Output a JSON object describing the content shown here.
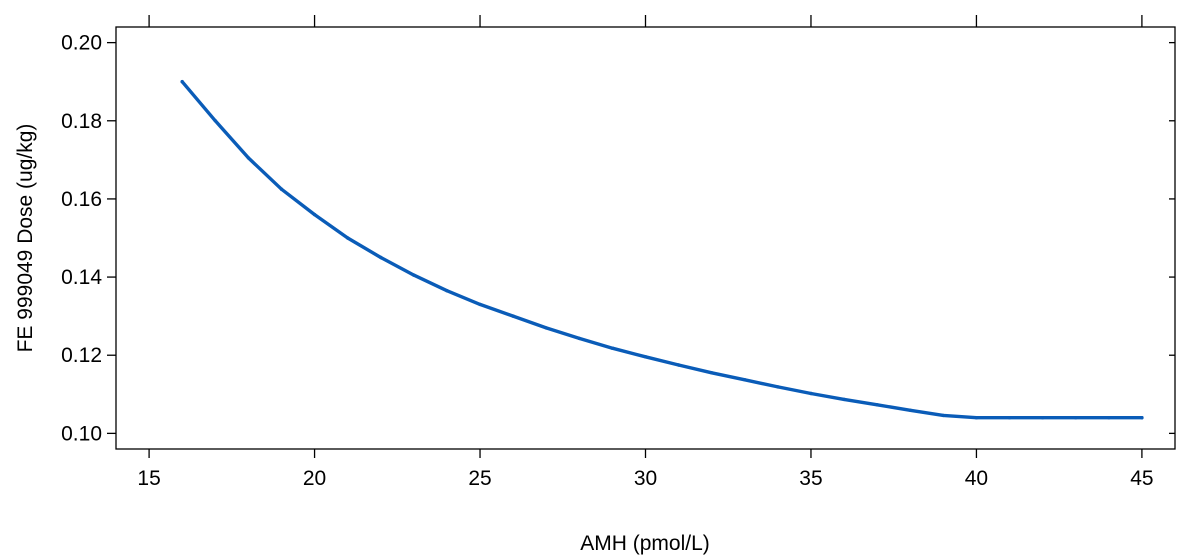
{
  "chart_data": {
    "type": "line",
    "xlabel": "AMH (pmol/L)",
    "ylabel": "FE 999049 Dose (ug/kg)",
    "xlim": [
      14,
      46
    ],
    "ylim": [
      0.096,
      0.204
    ],
    "x_ticks": [
      15,
      20,
      25,
      30,
      35,
      40,
      45
    ],
    "x_tick_labels": [
      "15",
      "20",
      "25",
      "30",
      "35",
      "40",
      "45"
    ],
    "y_ticks": [
      0.1,
      0.12,
      0.14,
      0.16,
      0.18,
      0.2
    ],
    "y_tick_labels": [
      "0.10",
      "0.12",
      "0.14",
      "0.16",
      "0.18",
      "0.20"
    ],
    "grid": false,
    "series": [
      {
        "color": "#0a5cb8",
        "x": [
          16,
          17,
          18,
          19,
          20,
          21,
          22,
          23,
          24,
          25,
          26,
          27,
          28,
          29,
          30,
          31,
          32,
          33,
          34,
          35,
          36,
          37,
          38,
          39,
          40,
          41,
          42,
          43,
          44,
          45
        ],
        "y": [
          0.19,
          0.18,
          0.1705,
          0.1625,
          0.156,
          0.15,
          0.145,
          0.1405,
          0.1365,
          0.133,
          0.13,
          0.127,
          0.1243,
          0.1218,
          0.1196,
          0.1175,
          0.1155,
          0.1137,
          0.1119,
          0.1102,
          0.1087,
          0.1073,
          0.1059,
          0.1046,
          0.104,
          0.104,
          0.104,
          0.104,
          0.104,
          0.104
        ]
      }
    ]
  }
}
